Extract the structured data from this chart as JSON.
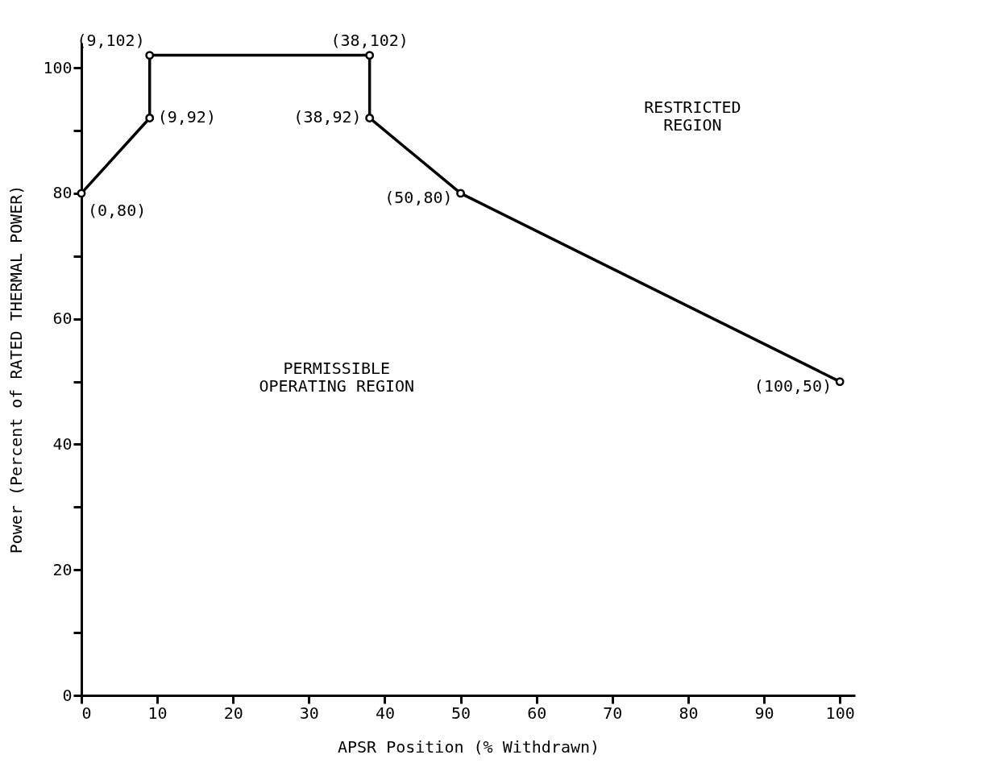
{
  "chart_data": {
    "type": "line",
    "xlabel": "APSR Position (% Withdrawn)",
    "ylabel": "Power (Percent of RATED THERMAL POWER)",
    "x": [
      0,
      9,
      9,
      38,
      38,
      50,
      100
    ],
    "series": [
      {
        "color": "#000000",
        "values": [
          80,
          92,
          102,
          102,
          92,
          80,
          50
        ]
      }
    ],
    "marker": "circle",
    "line_style": "solid",
    "xlim": [
      0,
      102
    ],
    "xticks": [
      0,
      10,
      20,
      30,
      40,
      50,
      60,
      70,
      80,
      90,
      100
    ],
    "ylim": [
      0,
      104
    ],
    "yticks": [
      0,
      {
        "value": 10,
        "label": null
      },
      20,
      {
        "value": 30,
        "label": null
      },
      40,
      {
        "value": 50,
        "label": null
      },
      60,
      {
        "value": 70,
        "label": null
      },
      80,
      {
        "value": 90,
        "label": null
      },
      100
    ],
    "annotations": [
      {
        "text": "(0,80)",
        "x": 0,
        "y": 80
      },
      {
        "text": "(9,92)",
        "x": 9,
        "y": 92
      },
      {
        "text": "(9,102)",
        "x": 9,
        "y": 102
      },
      {
        "text": "(38,102)",
        "x": 38,
        "y": 102
      },
      {
        "text": "(38,92)",
        "x": 38,
        "y": 92
      },
      {
        "text": "(50,80)",
        "x": 50,
        "y": 80
      },
      {
        "text": "(100,50)",
        "x": 100,
        "y": 50
      },
      "RESTRICTED\nREGION",
      "PERMISSIBLE\nOPERATING REGION"
    ]
  }
}
